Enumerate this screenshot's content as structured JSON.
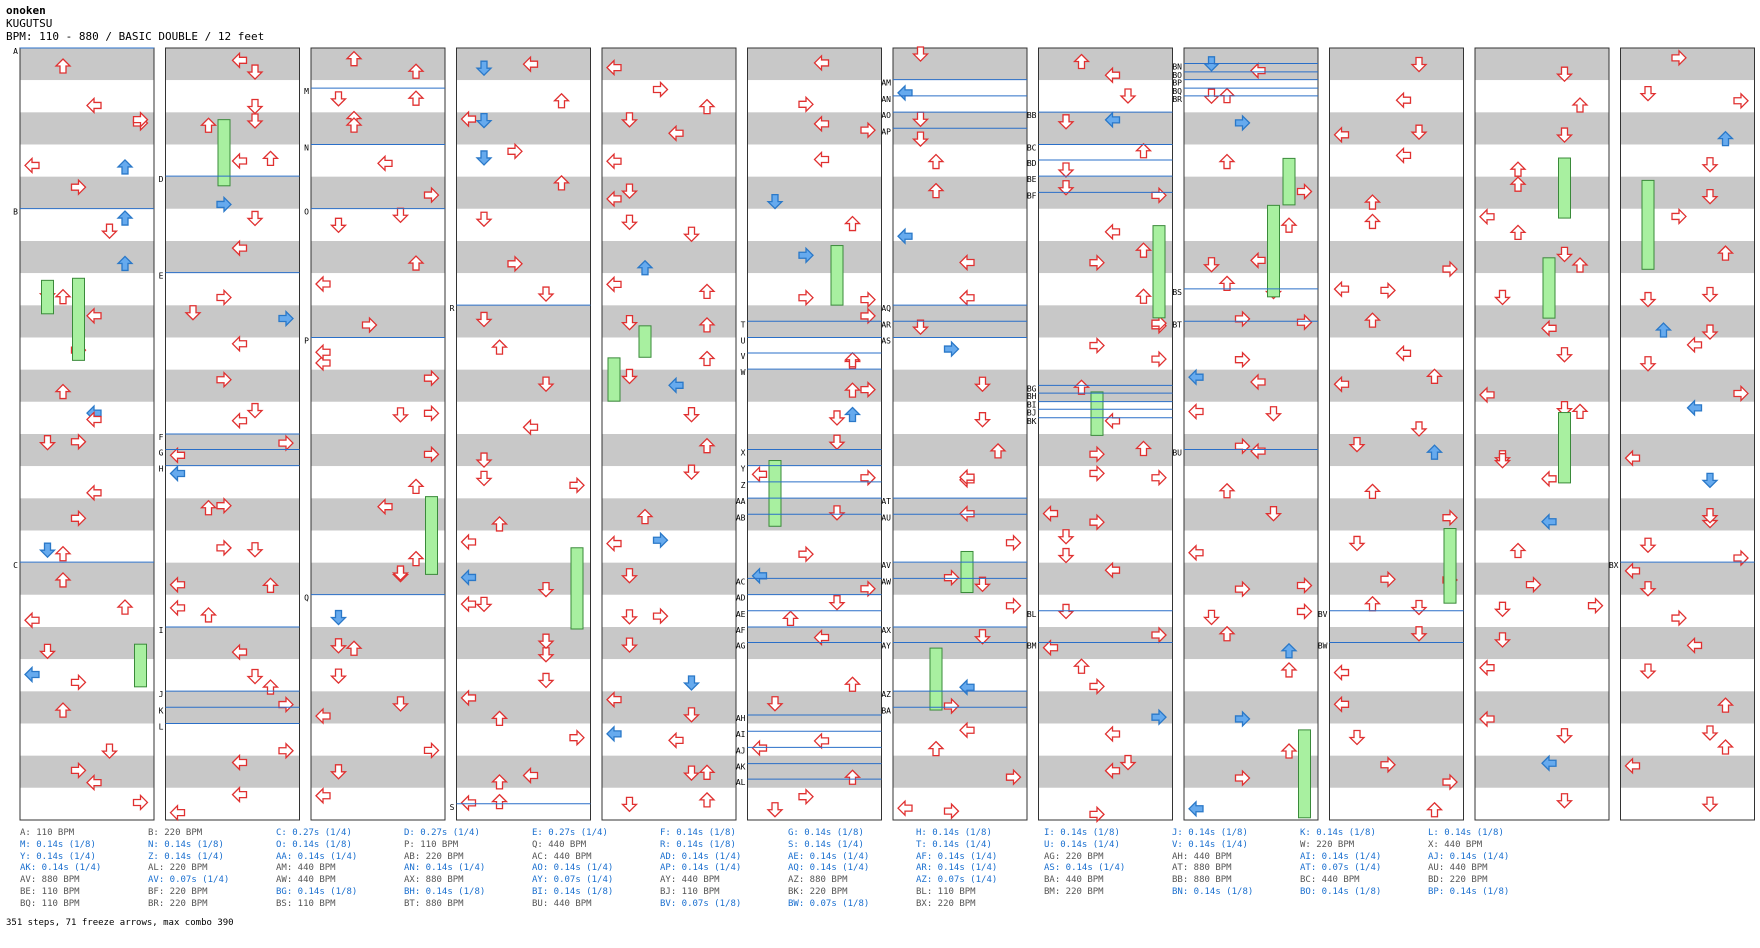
{
  "header": {
    "artist": "onoken",
    "title": "KUGUTSU",
    "info": "BPM: 110 - 880 / BASIC DOUBLE / 12 feet"
  },
  "colors": {
    "stripe": "#c8c8c8",
    "step_arrow": "#ff8080",
    "stop_arrow": "#66aaee",
    "freeze": "#a8f0a0",
    "marker_line": "#2a6fc8"
  },
  "columns": [
    {
      "markers": [
        {
          "label": "A",
          "y": 0.0
        },
        {
          "label": "B",
          "y": 0.208
        },
        {
          "label": "C",
          "y": 0.666
        }
      ]
    },
    {
      "markers": [
        {
          "label": "D",
          "y": 0.166
        },
        {
          "label": "E",
          "y": 0.291
        },
        {
          "label": "F",
          "y": 0.5
        },
        {
          "label": "G",
          "y": 0.52
        },
        {
          "label": "H",
          "y": 0.541
        },
        {
          "label": "I",
          "y": 0.75
        },
        {
          "label": "J",
          "y": 0.833
        },
        {
          "label": "K",
          "y": 0.854
        },
        {
          "label": "L",
          "y": 0.875
        }
      ]
    },
    {
      "markers": [
        {
          "label": "M",
          "y": 0.052
        },
        {
          "label": "N",
          "y": 0.125
        },
        {
          "label": "O",
          "y": 0.208
        },
        {
          "label": "P",
          "y": 0.375
        },
        {
          "label": "Q",
          "y": 0.708
        }
      ]
    },
    {
      "markers": [
        {
          "label": "R",
          "y": 0.333
        },
        {
          "label": "S",
          "y": 0.979
        }
      ]
    },
    {
      "markers": []
    },
    {
      "markers": [
        {
          "label": "T",
          "y": 0.354
        },
        {
          "label": "U",
          "y": 0.375
        },
        {
          "label": "V",
          "y": 0.395
        },
        {
          "label": "W",
          "y": 0.416
        },
        {
          "label": "X",
          "y": 0.52
        },
        {
          "label": "Y",
          "y": 0.541
        },
        {
          "label": "Z",
          "y": 0.562
        },
        {
          "label": "AA",
          "y": 0.583
        },
        {
          "label": "AB",
          "y": 0.604
        },
        {
          "label": "AC",
          "y": 0.687
        },
        {
          "label": "AD",
          "y": 0.708
        },
        {
          "label": "AE",
          "y": 0.729
        },
        {
          "label": "AF",
          "y": 0.75
        },
        {
          "label": "AG",
          "y": 0.77
        },
        {
          "label": "AH",
          "y": 0.864
        },
        {
          "label": "AI",
          "y": 0.885
        },
        {
          "label": "AJ",
          "y": 0.906
        },
        {
          "label": "AK",
          "y": 0.927
        },
        {
          "label": "AL",
          "y": 0.947
        }
      ]
    },
    {
      "markers": [
        {
          "label": "AM",
          "y": 0.041
        },
        {
          "label": "AN",
          "y": 0.062
        },
        {
          "label": "AO",
          "y": 0.083
        },
        {
          "label": "AP",
          "y": 0.104
        },
        {
          "label": "AQ",
          "y": 0.333
        },
        {
          "label": "AR",
          "y": 0.354
        },
        {
          "label": "AS",
          "y": 0.375
        },
        {
          "label": "AT",
          "y": 0.583
        },
        {
          "label": "AU",
          "y": 0.604
        },
        {
          "label": "AV",
          "y": 0.666
        },
        {
          "label": "AW",
          "y": 0.687
        },
        {
          "label": "AX",
          "y": 0.75
        },
        {
          "label": "AY",
          "y": 0.77
        },
        {
          "label": "AZ",
          "y": 0.833
        },
        {
          "label": "BA",
          "y": 0.854
        }
      ]
    },
    {
      "markers": [
        {
          "label": "BB",
          "y": 0.083
        },
        {
          "label": "BC",
          "y": 0.125
        },
        {
          "label": "BD",
          "y": 0.145
        },
        {
          "label": "BE",
          "y": 0.166
        },
        {
          "label": "BF",
          "y": 0.187
        },
        {
          "label": "BG",
          "y": 0.437
        },
        {
          "label": "BH",
          "y": 0.447
        },
        {
          "label": "BI",
          "y": 0.458
        },
        {
          "label": "BJ",
          "y": 0.468
        },
        {
          "label": "BK",
          "y": 0.479
        },
        {
          "label": "BL",
          "y": 0.729
        },
        {
          "label": "BM",
          "y": 0.77
        }
      ]
    },
    {
      "markers": [
        {
          "label": "BN",
          "y": 0.02
        },
        {
          "label": "BO",
          "y": 0.031
        },
        {
          "label": "BP",
          "y": 0.041
        },
        {
          "label": "BQ",
          "y": 0.052
        },
        {
          "label": "BR",
          "y": 0.062
        },
        {
          "label": "BS",
          "y": 0.312
        },
        {
          "label": "BT",
          "y": 0.354
        },
        {
          "label": "BU",
          "y": 0.52
        }
      ]
    },
    {
      "markers": [
        {
          "label": "BV",
          "y": 0.729
        },
        {
          "label": "BW",
          "y": 0.77
        }
      ]
    },
    {
      "markers": []
    },
    {
      "markers": [
        {
          "label": "BX",
          "y": 0.666
        }
      ]
    }
  ],
  "legend": [
    [
      {
        "t": "A: 110 BPM",
        "k": "bpm"
      },
      {
        "t": "B: 220 BPM",
        "k": "bpm"
      },
      {
        "t": "C: 0.27s (1/4)",
        "k": "stop"
      },
      {
        "t": "D: 0.27s (1/4)",
        "k": "stop"
      },
      {
        "t": "E: 0.27s (1/4)",
        "k": "stop"
      },
      {
        "t": "F: 0.14s (1/8)",
        "k": "stop"
      },
      {
        "t": "G: 0.14s (1/8)",
        "k": "stop"
      },
      {
        "t": "H: 0.14s (1/8)",
        "k": "stop"
      },
      {
        "t": "I: 0.14s (1/8)",
        "k": "stop"
      },
      {
        "t": "J: 0.14s (1/8)",
        "k": "stop"
      },
      {
        "t": "K: 0.14s (1/8)",
        "k": "stop"
      },
      {
        "t": "L: 0.14s (1/8)",
        "k": "stop"
      }
    ],
    [
      {
        "t": "M: 0.14s (1/8)",
        "k": "stop"
      },
      {
        "t": "N: 0.14s (1/8)",
        "k": "stop"
      },
      {
        "t": "O: 0.14s (1/8)",
        "k": "stop"
      },
      {
        "t": "P: 110 BPM",
        "k": "bpm"
      },
      {
        "t": "Q: 440 BPM",
        "k": "bpm"
      },
      {
        "t": "R: 0.14s (1/8)",
        "k": "stop"
      },
      {
        "t": "S: 0.14s (1/4)",
        "k": "stop"
      },
      {
        "t": "T: 0.14s (1/4)",
        "k": "stop"
      },
      {
        "t": "U: 0.14s (1/4)",
        "k": "stop"
      },
      {
        "t": "V: 0.14s (1/4)",
        "k": "stop"
      },
      {
        "t": "W: 220 BPM",
        "k": "bpm"
      },
      {
        "t": "X: 440 BPM",
        "k": "bpm"
      }
    ],
    [
      {
        "t": "Y: 0.14s (1/4)",
        "k": "stop"
      },
      {
        "t": "Z: 0.14s (1/4)",
        "k": "stop"
      },
      {
        "t": "AA: 0.14s (1/4)",
        "k": "stop"
      },
      {
        "t": "AB: 220 BPM",
        "k": "bpm"
      },
      {
        "t": "AC: 440 BPM",
        "k": "bpm"
      },
      {
        "t": "AD: 0.14s (1/4)",
        "k": "stop"
      },
      {
        "t": "AE: 0.14s (1/4)",
        "k": "stop"
      },
      {
        "t": "AF: 0.14s (1/4)",
        "k": "stop"
      },
      {
        "t": "AG: 220 BPM",
        "k": "bpm"
      },
      {
        "t": "AH: 440 BPM",
        "k": "bpm"
      },
      {
        "t": "AI: 0.14s (1/4)",
        "k": "stop"
      },
      {
        "t": "AJ: 0.14s (1/4)",
        "k": "stop"
      }
    ],
    [
      {
        "t": "AK: 0.14s (1/4)",
        "k": "stop"
      },
      {
        "t": "AL: 220 BPM",
        "k": "bpm"
      },
      {
        "t": "AM: 440 BPM",
        "k": "bpm"
      },
      {
        "t": "AN: 0.14s (1/4)",
        "k": "stop"
      },
      {
        "t": "AO: 0.14s (1/4)",
        "k": "stop"
      },
      {
        "t": "AP: 0.14s (1/4)",
        "k": "stop"
      },
      {
        "t": "AQ: 0.14s (1/4)",
        "k": "stop"
      },
      {
        "t": "AR: 0.14s (1/4)",
        "k": "stop"
      },
      {
        "t": "AS: 0.14s (1/4)",
        "k": "stop"
      },
      {
        "t": "AT: 880 BPM",
        "k": "bpm"
      },
      {
        "t": "AT: 0.07s (1/4)",
        "k": "stop"
      },
      {
        "t": "AU: 440 BPM",
        "k": "bpm"
      }
    ],
    [
      {
        "t": "AV: 880 BPM",
        "k": "bpm"
      },
      {
        "t": "AV: 0.07s (1/4)",
        "k": "stop"
      },
      {
        "t": "AW: 440 BPM",
        "k": "bpm"
      },
      {
        "t": "AX: 880 BPM",
        "k": "bpm"
      },
      {
        "t": "AY: 0.07s (1/4)",
        "k": "stop"
      },
      {
        "t": "AY: 440 BPM",
        "k": "bpm"
      },
      {
        "t": "AZ: 880 BPM",
        "k": "bpm"
      },
      {
        "t": "AZ: 0.07s (1/4)",
        "k": "stop"
      },
      {
        "t": "BA: 440 BPM",
        "k": "bpm"
      },
      {
        "t": "BB: 880 BPM",
        "k": "bpm"
      },
      {
        "t": "BC: 440 BPM",
        "k": "bpm"
      },
      {
        "t": "BD: 220 BPM",
        "k": "bpm"
      }
    ],
    [
      {
        "t": "BE: 110 BPM",
        "k": "bpm"
      },
      {
        "t": "BF: 220 BPM",
        "k": "bpm"
      },
      {
        "t": "BG: 0.14s (1/8)",
        "k": "stop"
      },
      {
        "t": "BH: 0.14s (1/8)",
        "k": "stop"
      },
      {
        "t": "BI: 0.14s (1/8)",
        "k": "stop"
      },
      {
        "t": "BJ: 110 BPM",
        "k": "bpm"
      },
      {
        "t": "BK: 220 BPM",
        "k": "bpm"
      },
      {
        "t": "BL: 110 BPM",
        "k": "bpm"
      },
      {
        "t": "BM: 220 BPM",
        "k": "bpm"
      },
      {
        "t": "BN: 0.14s (1/8)",
        "k": "stop"
      },
      {
        "t": "BO: 0.14s (1/8)",
        "k": "stop"
      },
      {
        "t": "BP: 0.14s (1/8)",
        "k": "stop"
      }
    ],
    [
      {
        "t": "BQ: 110 BPM",
        "k": "bpm"
      },
      {
        "t": "BR: 220 BPM",
        "k": "bpm"
      },
      {
        "t": "BS: 110 BPM",
        "k": "bpm"
      },
      {
        "t": "BT: 880 BPM",
        "k": "bpm"
      },
      {
        "t": "BU: 440 BPM",
        "k": "bpm"
      },
      {
        "t": "BV: 0.07s (1/8)",
        "k": "stop"
      },
      {
        "t": "BW: 0.07s (1/8)",
        "k": "stop"
      },
      {
        "t": "BX: 220 BPM",
        "k": "bpm"
      }
    ]
  ],
  "summary": "351 steps, 71 freeze arrows, max combo 390"
}
